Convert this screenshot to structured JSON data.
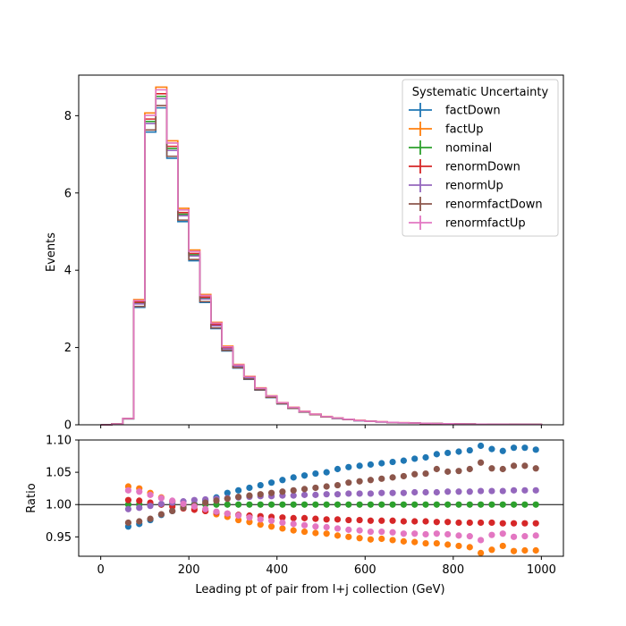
{
  "chart_data": [
    {
      "type": "line",
      "subtype": "step-histogram",
      "xlabel": "",
      "ylabel": "Events",
      "xlim": [
        -50,
        1050
      ],
      "ylim": [
        0,
        9.05
      ],
      "yticks": [
        0,
        2,
        4,
        6,
        8
      ],
      "xticks": [
        0,
        200,
        400,
        600,
        800,
        1000
      ],
      "show_x_tick_labels": false,
      "grid": false,
      "bin_edges": [
        0,
        25,
        50,
        75,
        100,
        125,
        150,
        175,
        200,
        225,
        250,
        275,
        300,
        325,
        350,
        375,
        400,
        425,
        450,
        475,
        500,
        525,
        550,
        575,
        600,
        625,
        650,
        675,
        700,
        725,
        750,
        775,
        800,
        825,
        850,
        875,
        900,
        925,
        950,
        975,
        1000
      ],
      "series": [
        {
          "name": "factDown",
          "color": "#1f77b4",
          "scale": 0.965
        },
        {
          "name": "factUp",
          "color": "#ff7f0e",
          "scale": 1.028
        },
        {
          "name": "nominal",
          "color": "#2ca02c",
          "scale": 1.0
        },
        {
          "name": "renormDown",
          "color": "#d62728",
          "scale": 1.008
        },
        {
          "name": "renormUp",
          "color": "#9467bd",
          "scale": 0.993
        },
        {
          "name": "renormfactDown",
          "color": "#8c564b",
          "scale": 0.972
        },
        {
          "name": "renormfactUp",
          "color": "#e377c2",
          "scale": 1.02
        }
      ],
      "nominal_values": [
        0.0,
        0.02,
        0.16,
        3.15,
        7.85,
        8.5,
        7.15,
        5.45,
        4.4,
        3.28,
        2.58,
        1.98,
        1.52,
        1.22,
        0.93,
        0.73,
        0.56,
        0.44,
        0.34,
        0.27,
        0.21,
        0.17,
        0.14,
        0.11,
        0.09,
        0.075,
        0.062,
        0.052,
        0.044,
        0.037,
        0.031,
        0.026,
        0.022,
        0.019,
        0.016,
        0.014,
        0.012,
        0.01,
        0.009,
        0.008
      ],
      "legend": {
        "title": "Systematic Uncertainty",
        "placement": "top-right"
      }
    },
    {
      "type": "scatter",
      "xlabel": "Leading pt of pair from l+j collection (GeV)",
      "ylabel": "Ratio",
      "xlim": [
        -50,
        1050
      ],
      "ylim": [
        0.92,
        1.1
      ],
      "yticks": [
        0.95,
        1.0,
        1.05,
        1.1
      ],
      "ytick_labels": [
        "0.95",
        "1.00",
        "1.05",
        "1.10"
      ],
      "xticks": [
        0,
        200,
        400,
        600,
        800,
        1000
      ],
      "xtick_labels": [
        "0",
        "200",
        "400",
        "600",
        "800",
        "1000"
      ],
      "reference_line": 1.0,
      "x": [
        62.5,
        87.5,
        112.5,
        137.5,
        162.5,
        187.5,
        212.5,
        237.5,
        262.5,
        287.5,
        312.5,
        337.5,
        362.5,
        387.5,
        412.5,
        437.5,
        462.5,
        487.5,
        512.5,
        537.5,
        562.5,
        587.5,
        612.5,
        637.5,
        662.5,
        687.5,
        712.5,
        737.5,
        762.5,
        787.5,
        812.5,
        837.5,
        862.5,
        887.5,
        912.5,
        937.5,
        962.5,
        987.5
      ],
      "series": [
        {
          "name": "factDown",
          "color": "#1f77b4",
          "values": [
            0.966,
            0.97,
            0.976,
            0.984,
            0.99,
            0.996,
            1.001,
            1.006,
            1.011,
            1.018,
            1.022,
            1.026,
            1.03,
            1.034,
            1.038,
            1.042,
            1.045,
            1.048,
            1.05,
            1.055,
            1.058,
            1.06,
            1.062,
            1.064,
            1.066,
            1.068,
            1.071,
            1.073,
            1.078,
            1.08,
            1.082,
            1.084,
            1.091,
            1.086,
            1.083,
            1.088,
            1.088,
            1.085
          ]
        },
        {
          "name": "factUp",
          "color": "#ff7f0e",
          "values": [
            1.028,
            1.025,
            1.018,
            1.011,
            1.005,
            0.999,
            0.994,
            0.99,
            0.985,
            0.981,
            0.976,
            0.973,
            0.969,
            0.966,
            0.963,
            0.96,
            0.958,
            0.956,
            0.955,
            0.952,
            0.95,
            0.948,
            0.946,
            0.947,
            0.945,
            0.943,
            0.942,
            0.94,
            0.94,
            0.938,
            0.936,
            0.934,
            0.925,
            0.93,
            0.936,
            0.928,
            0.929,
            0.929
          ]
        },
        {
          "name": "nominal",
          "color": "#2ca02c",
          "values": [
            1.0,
            1.0,
            1.0,
            1.0,
            1.0,
            1.0,
            1.0,
            1.0,
            1.0,
            1.0,
            1.0,
            1.0,
            1.0,
            1.0,
            1.0,
            1.0,
            1.0,
            1.0,
            1.0,
            1.0,
            1.0,
            1.0,
            1.0,
            1.0,
            1.0,
            1.0,
            1.0,
            1.0,
            1.0,
            1.0,
            1.0,
            1.0,
            1.0,
            1.0,
            1.0,
            1.0,
            1.0,
            1.0
          ]
        },
        {
          "name": "renormDown",
          "color": "#d62728",
          "values": [
            1.007,
            1.006,
            1.003,
            1.0,
            0.997,
            0.994,
            0.992,
            0.99,
            0.988,
            0.986,
            0.984,
            0.983,
            0.982,
            0.981,
            0.98,
            0.979,
            0.979,
            0.978,
            0.977,
            0.977,
            0.976,
            0.976,
            0.975,
            0.975,
            0.975,
            0.974,
            0.974,
            0.974,
            0.973,
            0.973,
            0.972,
            0.972,
            0.972,
            0.972,
            0.971,
            0.971,
            0.971,
            0.971
          ]
        },
        {
          "name": "renormUp",
          "color": "#9467bd",
          "values": [
            0.993,
            0.995,
            0.998,
            1.001,
            1.003,
            1.005,
            1.007,
            1.008,
            1.009,
            1.01,
            1.011,
            1.012,
            1.013,
            1.013,
            1.014,
            1.014,
            1.015,
            1.015,
            1.016,
            1.016,
            1.017,
            1.017,
            1.017,
            1.018,
            1.018,
            1.018,
            1.019,
            1.019,
            1.019,
            1.02,
            1.02,
            1.02,
            1.021,
            1.021,
            1.021,
            1.022,
            1.022,
            1.022
          ]
        },
        {
          "name": "renormfactDown",
          "color": "#8c564b",
          "values": [
            0.972,
            0.974,
            0.978,
            0.985,
            0.99,
            0.995,
            0.999,
            1.003,
            1.006,
            1.009,
            1.012,
            1.014,
            1.016,
            1.018,
            1.02,
            1.022,
            1.024,
            1.026,
            1.028,
            1.03,
            1.034,
            1.036,
            1.038,
            1.04,
            1.042,
            1.044,
            1.047,
            1.048,
            1.055,
            1.051,
            1.052,
            1.055,
            1.065,
            1.056,
            1.055,
            1.06,
            1.06,
            1.056
          ]
        },
        {
          "name": "renormfactUp",
          "color": "#e377c2",
          "values": [
            1.022,
            1.02,
            1.015,
            1.01,
            1.006,
            1.001,
            0.997,
            0.993,
            0.989,
            0.986,
            0.983,
            0.98,
            0.977,
            0.975,
            0.972,
            0.97,
            0.968,
            0.966,
            0.965,
            0.963,
            0.961,
            0.96,
            0.958,
            0.958,
            0.957,
            0.955,
            0.955,
            0.954,
            0.955,
            0.954,
            0.952,
            0.951,
            0.945,
            0.953,
            0.955,
            0.95,
            0.951,
            0.952
          ]
        }
      ]
    }
  ]
}
